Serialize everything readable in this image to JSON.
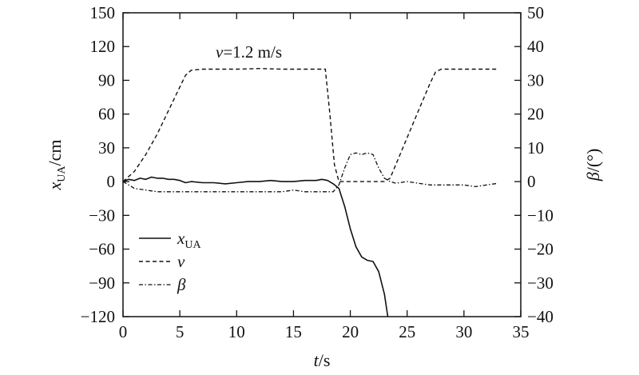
{
  "chart_data": {
    "type": "line",
    "x_label": {
      "var": "t",
      "unit": "/s"
    },
    "y_left_label": {
      "var": "x",
      "sub": "UA",
      "unit": "/cm"
    },
    "y_right_label": {
      "var": "β",
      "unit": "/(°)"
    },
    "xlim": [
      0,
      35
    ],
    "ylim_left": [
      -120,
      150
    ],
    "ylim_right": [
      -40,
      50
    ],
    "x_ticks": [
      0,
      5,
      10,
      15,
      20,
      25,
      30,
      35
    ],
    "y_left_ticks": [
      150,
      120,
      90,
      60,
      30,
      0,
      -30,
      -60,
      -90,
      -120
    ],
    "y_left_tick_labels": [
      "150",
      "120",
      "90",
      "60",
      "30",
      "0",
      "−30",
      "−60",
      "−90",
      "−120"
    ],
    "y_right_ticks": [
      50,
      40,
      30,
      20,
      10,
      0,
      -10,
      -20,
      -30,
      -40
    ],
    "y_right_tick_labels": [
      "50",
      "40",
      "30",
      "20",
      "10",
      "0",
      "−10",
      "−20",
      "−30",
      "−40"
    ],
    "annotation": {
      "var": "v",
      "text": "=1.2 m/s"
    },
    "legend_position": "lower-left",
    "series": [
      {
        "name": "x",
        "name_sub": "UA",
        "axis": "left",
        "style": "solid",
        "x": [
          0,
          0.5,
          1,
          1.5,
          2,
          2.5,
          3,
          3.5,
          4,
          4.5,
          5,
          5.5,
          6,
          7,
          8,
          9,
          10,
          11,
          12,
          13,
          14,
          15,
          16,
          17,
          17.5,
          18,
          18.5,
          19,
          19.5,
          20,
          20.5,
          21,
          21.5,
          22,
          22.5,
          23,
          23.3
        ],
        "y": [
          0,
          2,
          1,
          3,
          2,
          4,
          3,
          3,
          2,
          2,
          1,
          -1,
          0,
          -1,
          -1,
          -2,
          -1,
          0,
          0,
          1,
          0,
          0,
          1,
          1,
          2,
          1,
          -2,
          -6,
          -22,
          -42,
          -58,
          -67,
          -70,
          -71,
          -80,
          -100,
          -120
        ]
      },
      {
        "name": "v",
        "axis": "right",
        "style": "dashed",
        "x": [
          0,
          1,
          2,
          3,
          4,
          5,
          5.5,
          6,
          7,
          8,
          10,
          12,
          14,
          16,
          17,
          17.8,
          18.2,
          18.6,
          19,
          20,
          22,
          23,
          23.5,
          24,
          25,
          26,
          27,
          27.5,
          28,
          30,
          33
        ],
        "y": [
          0,
          3,
          8,
          14,
          21,
          28,
          31.5,
          33,
          33.3,
          33.3,
          33.3,
          33.5,
          33.3,
          33.3,
          33.3,
          33.3,
          20,
          5,
          0,
          0,
          0,
          0,
          1,
          5,
          13,
          21,
          29,
          32.5,
          33.3,
          33.3,
          33.3
        ]
      },
      {
        "name": "β",
        "axis": "right",
        "style": "dashdot",
        "x": [
          0,
          0.5,
          1,
          2,
          3,
          4,
          5,
          6,
          8,
          10,
          12,
          14,
          15,
          16,
          17,
          18,
          18.5,
          19,
          19.5,
          20,
          20.5,
          21,
          21.5,
          22,
          22.5,
          23,
          23.5,
          24,
          25,
          26,
          27,
          28,
          29,
          30,
          31,
          32,
          33
        ],
        "y": [
          0,
          -1,
          -2,
          -2.5,
          -3,
          -3,
          -3,
          -3,
          -3,
          -3,
          -3,
          -3,
          -2.5,
          -3,
          -3,
          -3,
          -3,
          -1,
          4,
          8,
          8.5,
          8,
          8.5,
          8,
          4,
          1,
          0,
          -0.5,
          0,
          -0.5,
          -1,
          -1,
          -1,
          -1,
          -1.5,
          -1,
          -0.5
        ]
      }
    ]
  }
}
